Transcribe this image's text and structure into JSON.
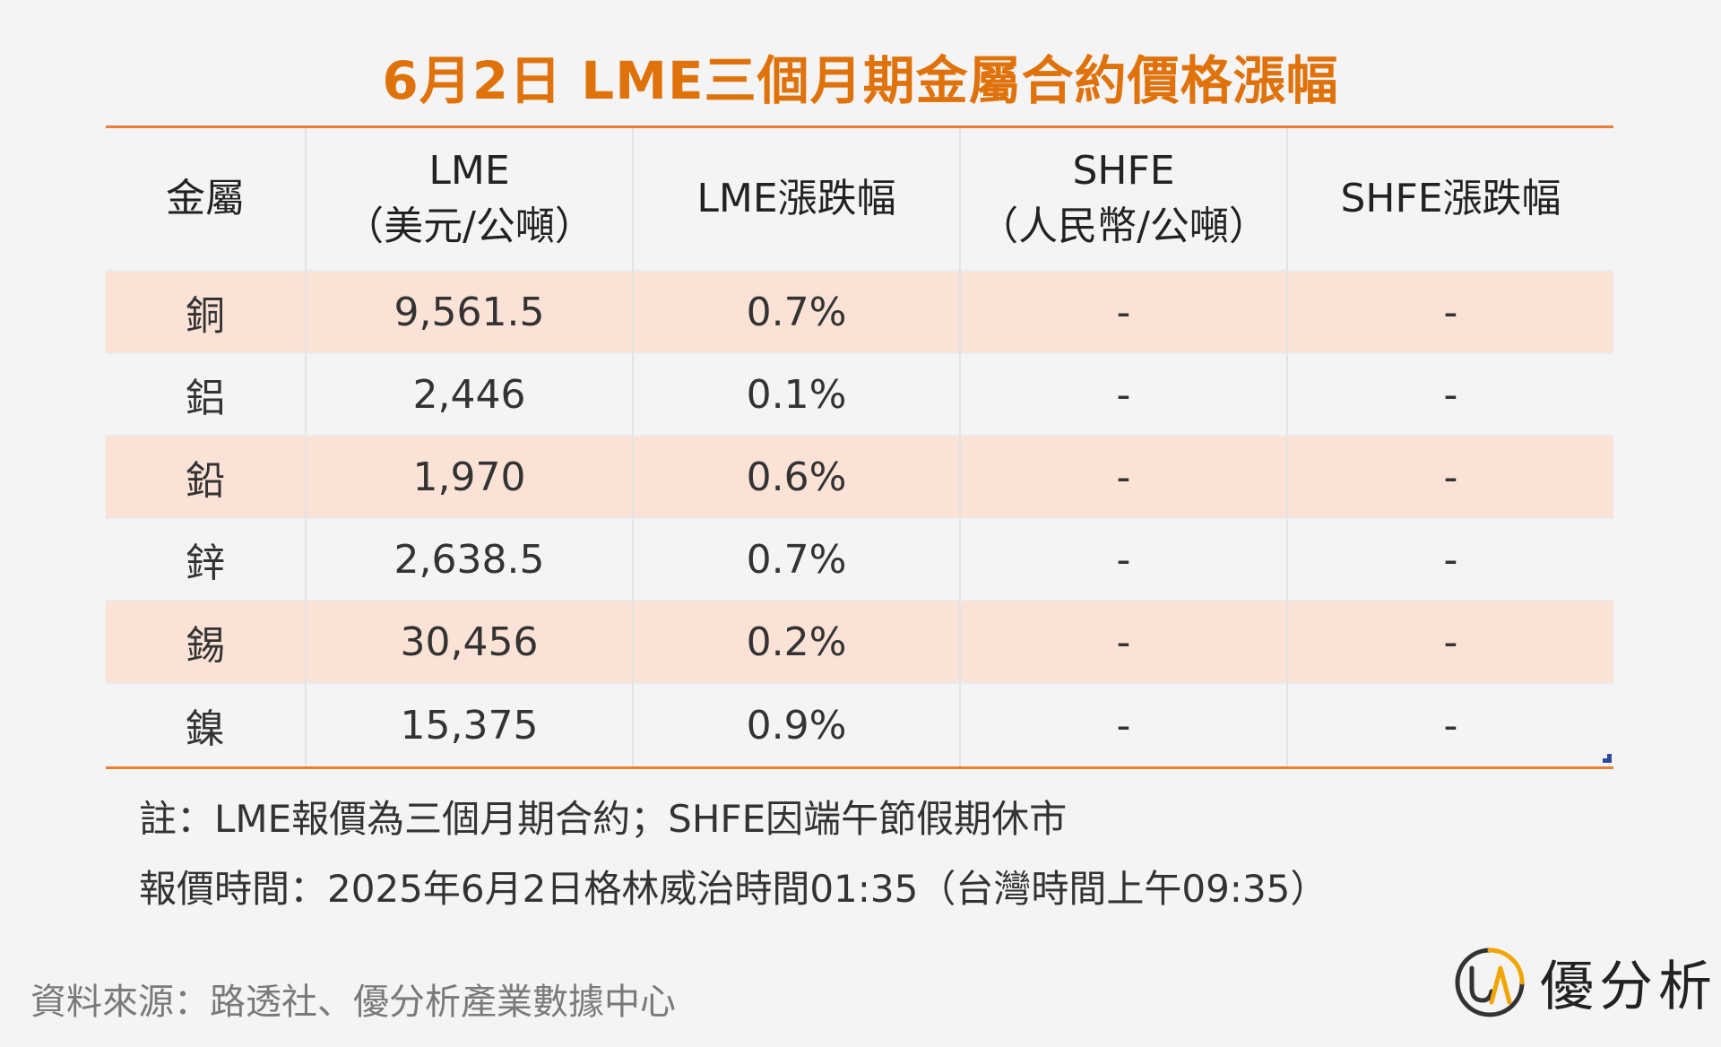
{
  "title": "6月2日 LME三個月期金屬合約價格漲幅",
  "table": {
    "headers": [
      {
        "line1": "金屬",
        "line2": ""
      },
      {
        "line1": "LME",
        "line2": "（美元/公噸）"
      },
      {
        "line1": "LME漲跌幅",
        "line2": ""
      },
      {
        "line1": "SHFE",
        "line2": "（人民幣/公噸）"
      },
      {
        "line1": "SHFE漲跌幅",
        "line2": ""
      }
    ],
    "rows": [
      {
        "metal": "銅",
        "lme": "9,561.5",
        "lme_change": "0.7%",
        "shfe": "-",
        "shfe_change": "-"
      },
      {
        "metal": "鋁",
        "lme": "2,446",
        "lme_change": "0.1%",
        "shfe": "-",
        "shfe_change": "-"
      },
      {
        "metal": "鉛",
        "lme": "1,970",
        "lme_change": "0.6%",
        "shfe": "-",
        "shfe_change": "-"
      },
      {
        "metal": "鋅",
        "lme": "2,638.5",
        "lme_change": "0.7%",
        "shfe": "-",
        "shfe_change": "-"
      },
      {
        "metal": "錫",
        "lme": "30,456",
        "lme_change": "0.2%",
        "shfe": "-",
        "shfe_change": "-"
      },
      {
        "metal": "鎳",
        "lme": "15,375",
        "lme_change": "0.9%",
        "shfe": "-",
        "shfe_change": "-"
      }
    ]
  },
  "notes": {
    "note1": "註：LME報價為三個月期合約；SHFE因端午節假期休市",
    "note2": "報價時間：2025年6月2日格林威治時間01:35（台灣時間上午09:35）"
  },
  "source": "資料來源：路透社、優分析產業數據中心",
  "brand": {
    "mark": "UA",
    "name": "優分析"
  },
  "colors": {
    "accent": "#e0720b",
    "rule": "#ed7d31",
    "shade": "#fbe2d6",
    "background": "#f4f4f4"
  }
}
